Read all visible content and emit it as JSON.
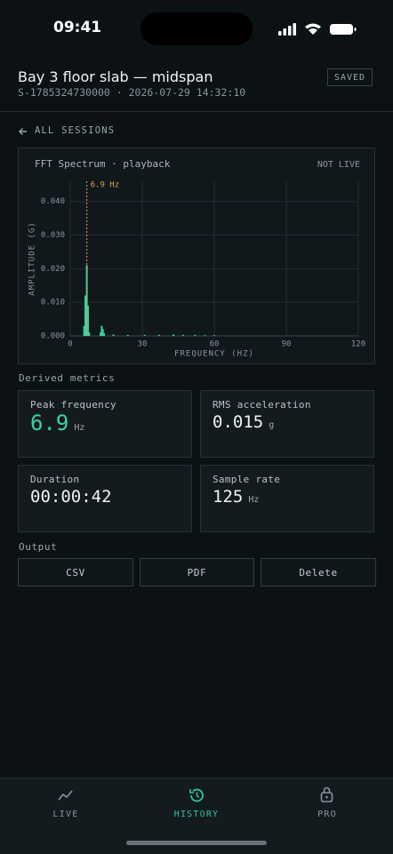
{
  "status_bar": {
    "time": "09:41"
  },
  "header": {
    "title": "Bay 3 floor slab — midspan",
    "subtitle": "S-1785324730000 · 2026-07-29 14:32:10",
    "badge": "SAVED"
  },
  "back_link": "ALL SESSIONS",
  "spectrum": {
    "type": "bar",
    "title": "FFT Spectrum · playback",
    "status": "NOT LIVE",
    "x_label": "FREQUENCY (HZ)",
    "y_label": "AMPLITUDE (G)",
    "x": [
      5.8,
      6.3,
      6.9,
      7.4,
      7.9,
      12.6,
      13.1,
      13.6,
      14.1,
      18,
      24,
      31,
      37,
      43,
      47,
      52,
      56,
      60
    ],
    "values": [
      0.003,
      0.012,
      0.021,
      0.009,
      0.001,
      0.001,
      0.003,
      0.002,
      0.0008,
      0.0004,
      0.0003,
      0.0003,
      0.0003,
      0.0004,
      0.0003,
      0.0003,
      0.0002,
      0.0002
    ],
    "color": "#3ecf9f",
    "xlim": [
      0,
      120
    ],
    "ylim": [
      0,
      0.046
    ],
    "xticks": [
      0,
      30,
      60,
      90,
      120
    ],
    "yticks": [
      {
        "value": 0,
        "label": "0.000"
      },
      {
        "value": 0.01,
        "label": "0.010"
      },
      {
        "value": 0.02,
        "label": "0.020"
      },
      {
        "value": 0.03,
        "label": "0.030"
      },
      {
        "value": 0.04,
        "label": "0.040"
      }
    ],
    "grid": true,
    "peak_marker": {
      "x": 6.9,
      "label": "6.9 Hz",
      "color": "#d9a54a"
    }
  },
  "metrics": {
    "heading": "Derived metrics",
    "cards": [
      {
        "label": "Peak frequency",
        "value": "6.9",
        "unit": "Hz"
      },
      {
        "label": "RMS acceleration",
        "value": "0.015",
        "unit": "g"
      },
      {
        "label": "Duration",
        "value": "00:00:42"
      },
      {
        "label": "Sample rate",
        "value": "125",
        "unit": "Hz"
      }
    ]
  },
  "output": {
    "heading": "Output",
    "buttons": [
      "CSV",
      "PDF",
      "Delete"
    ]
  },
  "tabs": [
    "LIVE",
    "HISTORY",
    "PRO"
  ]
}
